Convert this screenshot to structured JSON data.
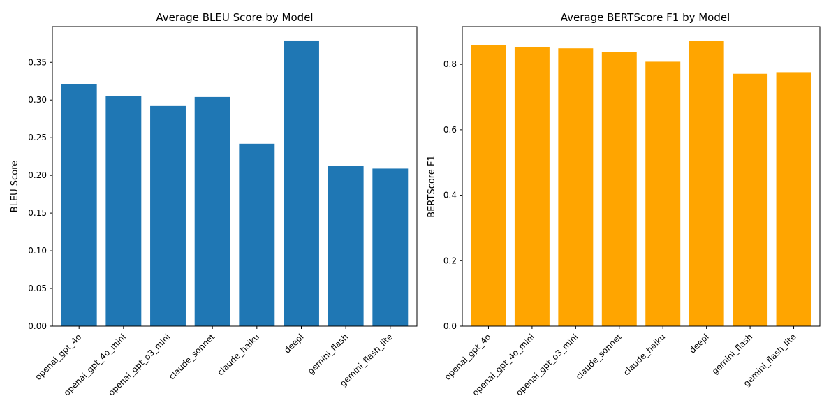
{
  "chart_data": [
    {
      "type": "bar",
      "title": "Average BLEU Score by Model",
      "xlabel": "",
      "ylabel": "BLEU Score",
      "categories": [
        "openai_gpt_4o",
        "openai_gpt_4o_mini",
        "openai_gpt_o3_mini",
        "claude_sonnet",
        "claude_haiku",
        "deepl",
        "gemini_flash",
        "gemini_flash_lite"
      ],
      "values": [
        0.321,
        0.305,
        0.292,
        0.304,
        0.242,
        0.379,
        0.213,
        0.209
      ],
      "ylim": [
        0,
        0.3975
      ],
      "yticks": [
        0.0,
        0.05,
        0.1,
        0.15,
        0.2,
        0.25,
        0.3,
        0.35
      ],
      "ytick_labels": [
        "0.00",
        "0.05",
        "0.10",
        "0.15",
        "0.20",
        "0.25",
        "0.30",
        "0.35"
      ],
      "color": "#1f77b4",
      "grid": false
    },
    {
      "type": "bar",
      "title": "Average BERTScore F1 by Model",
      "xlabel": "",
      "ylabel": "BERTScore F1",
      "categories": [
        "openai_gpt_4o",
        "openai_gpt_4o_mini",
        "openai_gpt_o3_mini",
        "claude_sonnet",
        "claude_haiku",
        "deepl",
        "gemini_flash",
        "gemini_flash_lite"
      ],
      "values": [
        0.86,
        0.853,
        0.849,
        0.838,
        0.808,
        0.872,
        0.771,
        0.776
      ],
      "ylim": [
        0,
        0.9156
      ],
      "yticks": [
        0.0,
        0.2,
        0.4,
        0.6,
        0.8
      ],
      "ytick_labels": [
        "0.0",
        "0.2",
        "0.4",
        "0.6",
        "0.8"
      ],
      "color": "#ffa500",
      "grid": false
    }
  ]
}
